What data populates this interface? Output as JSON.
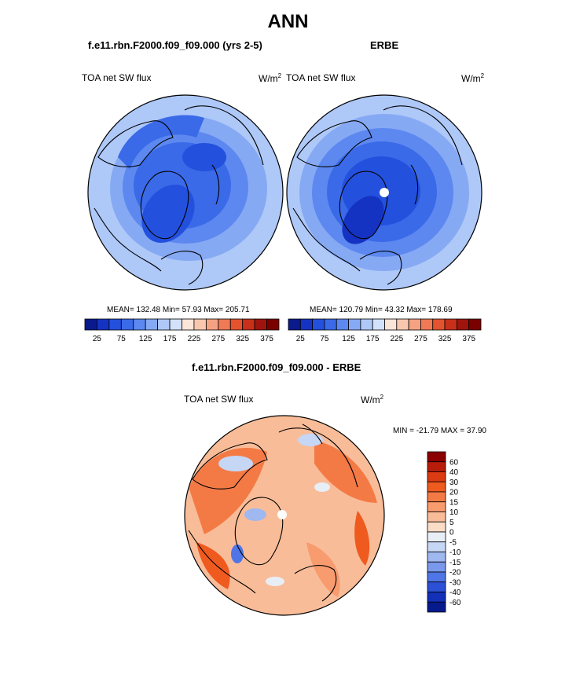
{
  "page_title": "ANN",
  "panels": [
    {
      "subtitle": "f.e11.rbn.F2000.f09_f09.000 (yrs 2-5)",
      "var_label": "TOA net SW flux",
      "units": "W/m",
      "units_sup": "2",
      "stats": "MEAN= 132.48  Min=  57.93  Max= 205.71"
    },
    {
      "subtitle": "ERBE",
      "var_label": "TOA net SW flux",
      "units": "W/m",
      "units_sup": "2",
      "stats": "MEAN= 120.79  Min=  43.32  Max= 178.69"
    },
    {
      "subtitle": "f.e11.rbn.F2000.f09_f09.000 - ERBE",
      "var_label": "TOA net SW flux",
      "units": "W/m",
      "units_sup": "2",
      "stats": "MIN = -21.79 MAX =  37.90"
    }
  ],
  "chart_data": [
    {
      "type": "heatmap",
      "title": "f.e11.rbn.F2000.f09_f09.000 (yrs 2-5)",
      "variable": "TOA net SW flux",
      "projection": "north polar stereographic",
      "mean": 132.48,
      "min": 57.93,
      "max": 205.71,
      "colorbar_levels": [
        25,
        50,
        75,
        100,
        125,
        150,
        175,
        200,
        225,
        250,
        275,
        300,
        325,
        350,
        375
      ],
      "colorbar_tick_labels": [
        "25",
        "75",
        "125",
        "175",
        "225",
        "275",
        "325",
        "375"
      ],
      "colorbar_colors": [
        "#0a1a8c",
        "#1533c2",
        "#2350dd",
        "#3a6ae8",
        "#5c88f0",
        "#86a9f4",
        "#aec8f8",
        "#d3e2fb",
        "#fbe4d8",
        "#f8c7ae",
        "#f4a282",
        "#ef7a55",
        "#e4532f",
        "#c8301a",
        "#a0140e",
        "#7a0000"
      ]
    },
    {
      "type": "heatmap",
      "title": "ERBE",
      "variable": "TOA net SW flux",
      "projection": "north polar stereographic",
      "mean": 120.79,
      "min": 43.32,
      "max": 178.69,
      "colorbar_levels": [
        25,
        50,
        75,
        100,
        125,
        150,
        175,
        200,
        225,
        250,
        275,
        300,
        325,
        350,
        375
      ],
      "colorbar_tick_labels": [
        "25",
        "75",
        "125",
        "175",
        "225",
        "275",
        "325",
        "375"
      ],
      "colorbar_colors": [
        "#0a1a8c",
        "#1533c2",
        "#2350dd",
        "#3a6ae8",
        "#5c88f0",
        "#86a9f4",
        "#aec8f8",
        "#d3e2fb",
        "#fbe4d8",
        "#f8c7ae",
        "#f4a282",
        "#ef7a55",
        "#e4532f",
        "#c8301a",
        "#a0140e",
        "#7a0000"
      ]
    },
    {
      "type": "heatmap",
      "title": "f.e11.rbn.F2000.f09_f09.000 - ERBE",
      "variable": "TOA net SW flux",
      "projection": "north polar stereographic",
      "min": -21.79,
      "max": 37.9,
      "colorbar_levels": [
        60,
        40,
        30,
        20,
        15,
        10,
        5,
        0,
        -5,
        -10,
        -15,
        -20,
        -30,
        -40,
        -60
      ],
      "colorbar_tick_labels": [
        "60",
        "40",
        "30",
        "20",
        "15",
        "10",
        "5",
        "0",
        "-5",
        "-10",
        "-15",
        "-20",
        "-30",
        "-40",
        "-60"
      ],
      "colorbar_colors": [
        "#8b0000",
        "#b81c0a",
        "#dc3a12",
        "#ef5a1f",
        "#f47a45",
        "#f89b6e",
        "#f9bc98",
        "#fbdcc6",
        "#e8eef6",
        "#c6d6f5",
        "#9fb8f0",
        "#7a99ec",
        "#5075e6",
        "#2c50d6",
        "#1330b8",
        "#061a8c"
      ]
    }
  ]
}
